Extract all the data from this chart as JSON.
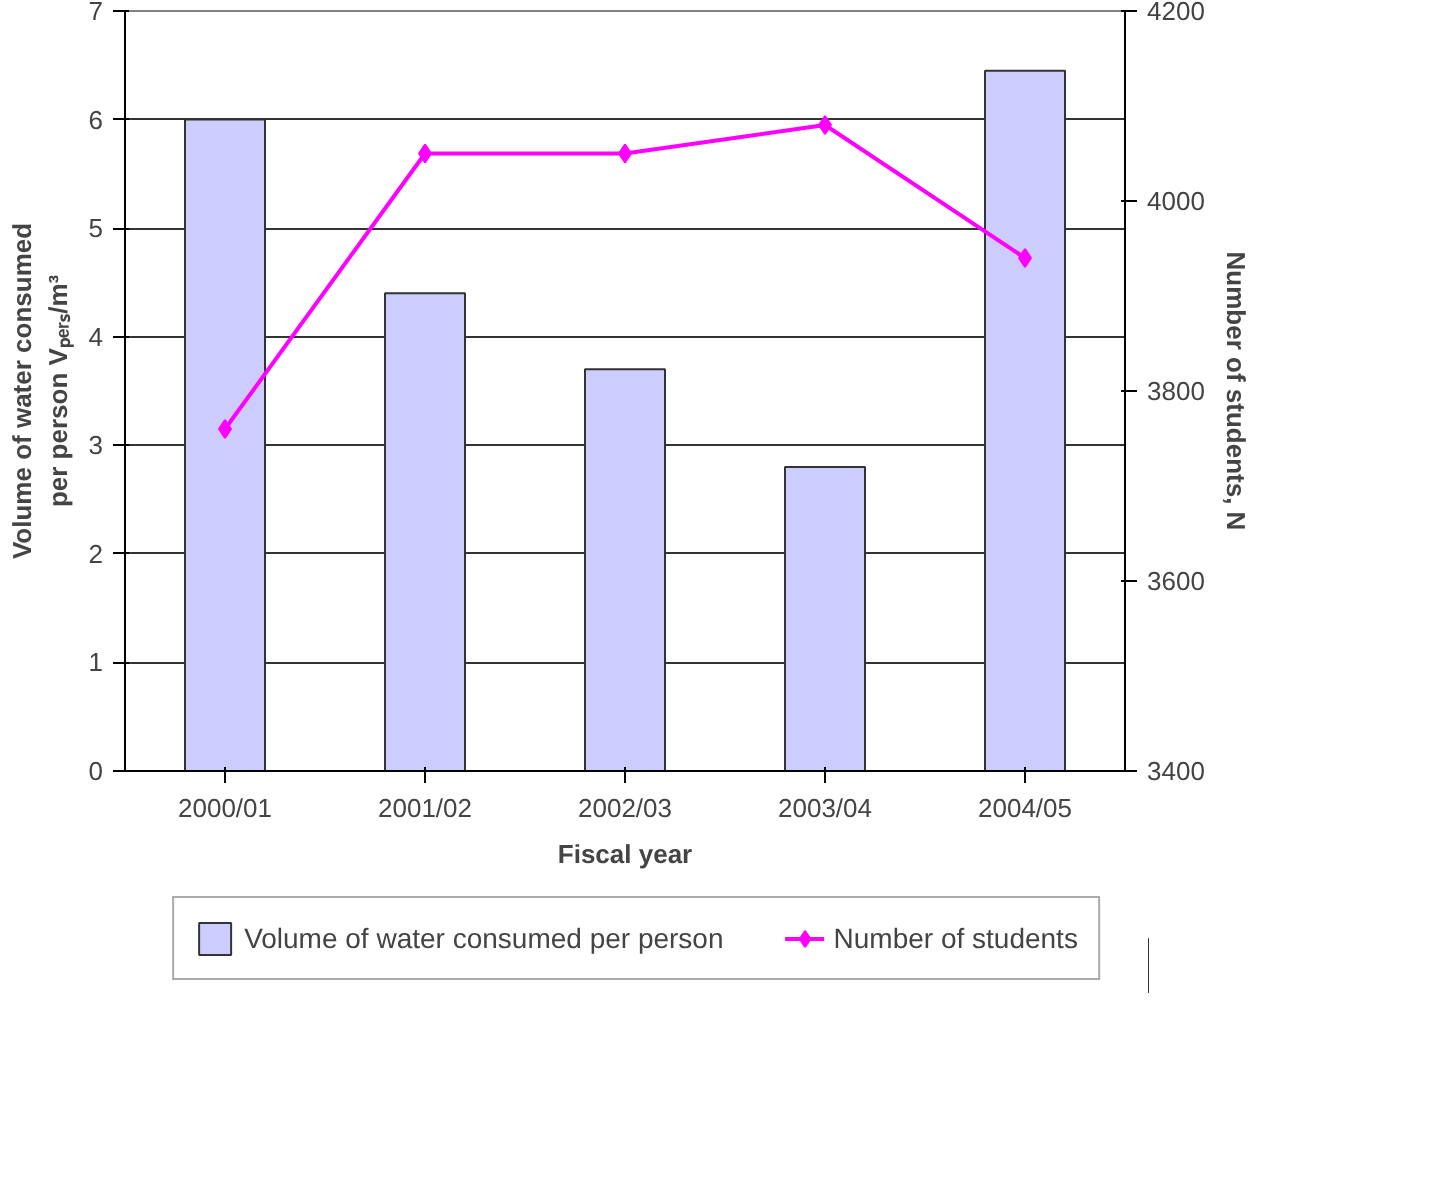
{
  "chart_data": {
    "type": "bar",
    "xlabel": "Fiscal year",
    "ylabel": "Volume of water consumed\nper person Vₚₑᵣₛ/m³",
    "y2label": "Number of students, N",
    "categories": [
      "2000/01",
      "2001/02",
      "2002/03",
      "2003/04",
      "2004/05"
    ],
    "series": [
      {
        "name": "Volume of water consumed per person",
        "color": "#ccccff",
        "values": [
          6.0,
          4.4,
          3.7,
          2.8,
          6.45
        ]
      },
      {
        "name": "Number of students",
        "type": "line",
        "axis": "y2",
        "color": "#ff00ff",
        "marker": "diamond",
        "values": [
          3760,
          4050,
          4050,
          4080,
          3940
        ]
      }
    ],
    "ylim": [
      0,
      7
    ],
    "yticks": [
      0,
      1,
      2,
      3,
      4,
      5,
      6,
      7
    ],
    "y2lim": [
      3400,
      4200
    ],
    "y2ticks": [
      3400,
      3600,
      3800,
      4000,
      4200
    ],
    "grid": "y",
    "legend": "bottom"
  }
}
